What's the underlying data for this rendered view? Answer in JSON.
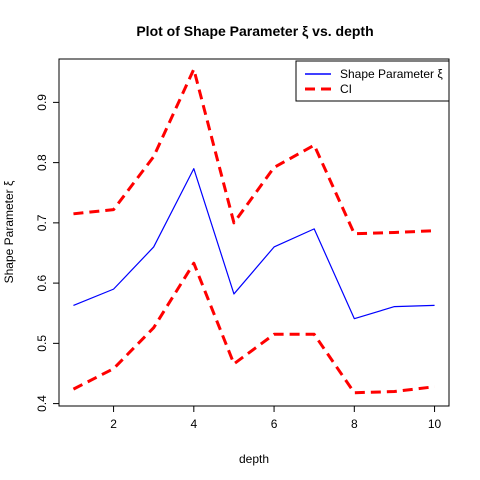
{
  "chart_data": {
    "type": "line",
    "title": "Plot of Shape Parameter ξ vs. depth",
    "xlabel": "depth",
    "ylabel": "Shape Parameter ξ",
    "xlim": [
      0.64,
      10.36
    ],
    "ylim": [
      0.396,
      0.972
    ],
    "xticks": [
      2,
      4,
      6,
      8,
      10
    ],
    "yticks": [
      0.4,
      0.5,
      0.6,
      0.7,
      0.8,
      0.9
    ],
    "grid": false,
    "legend_position": "top-right",
    "x": [
      1,
      2,
      3,
      4,
      5,
      6,
      7,
      8,
      9,
      10
    ],
    "series": [
      {
        "name": "Shape Parameter ξ",
        "color": "#0000ff",
        "style": "solid",
        "values": [
          0.563,
          0.59,
          0.66,
          0.79,
          0.582,
          0.66,
          0.69,
          0.541,
          0.561,
          0.563
        ]
      },
      {
        "name": "CI",
        "color": "#ff0000",
        "style": "dashed",
        "values": [
          0.715,
          0.722,
          0.81,
          0.955,
          0.7,
          0.792,
          0.829,
          0.682,
          0.684,
          0.687
        ]
      },
      {
        "name": "CI",
        "color": "#ff0000",
        "style": "dashed",
        "values": [
          0.424,
          0.458,
          0.526,
          0.633,
          0.466,
          0.515,
          0.515,
          0.418,
          0.42,
          0.428
        ]
      }
    ],
    "legend": [
      {
        "label": "Shape Parameter ξ",
        "color": "#0000ff",
        "style": "solid"
      },
      {
        "label": "CI",
        "color": "#ff0000",
        "style": "dashed"
      }
    ]
  }
}
